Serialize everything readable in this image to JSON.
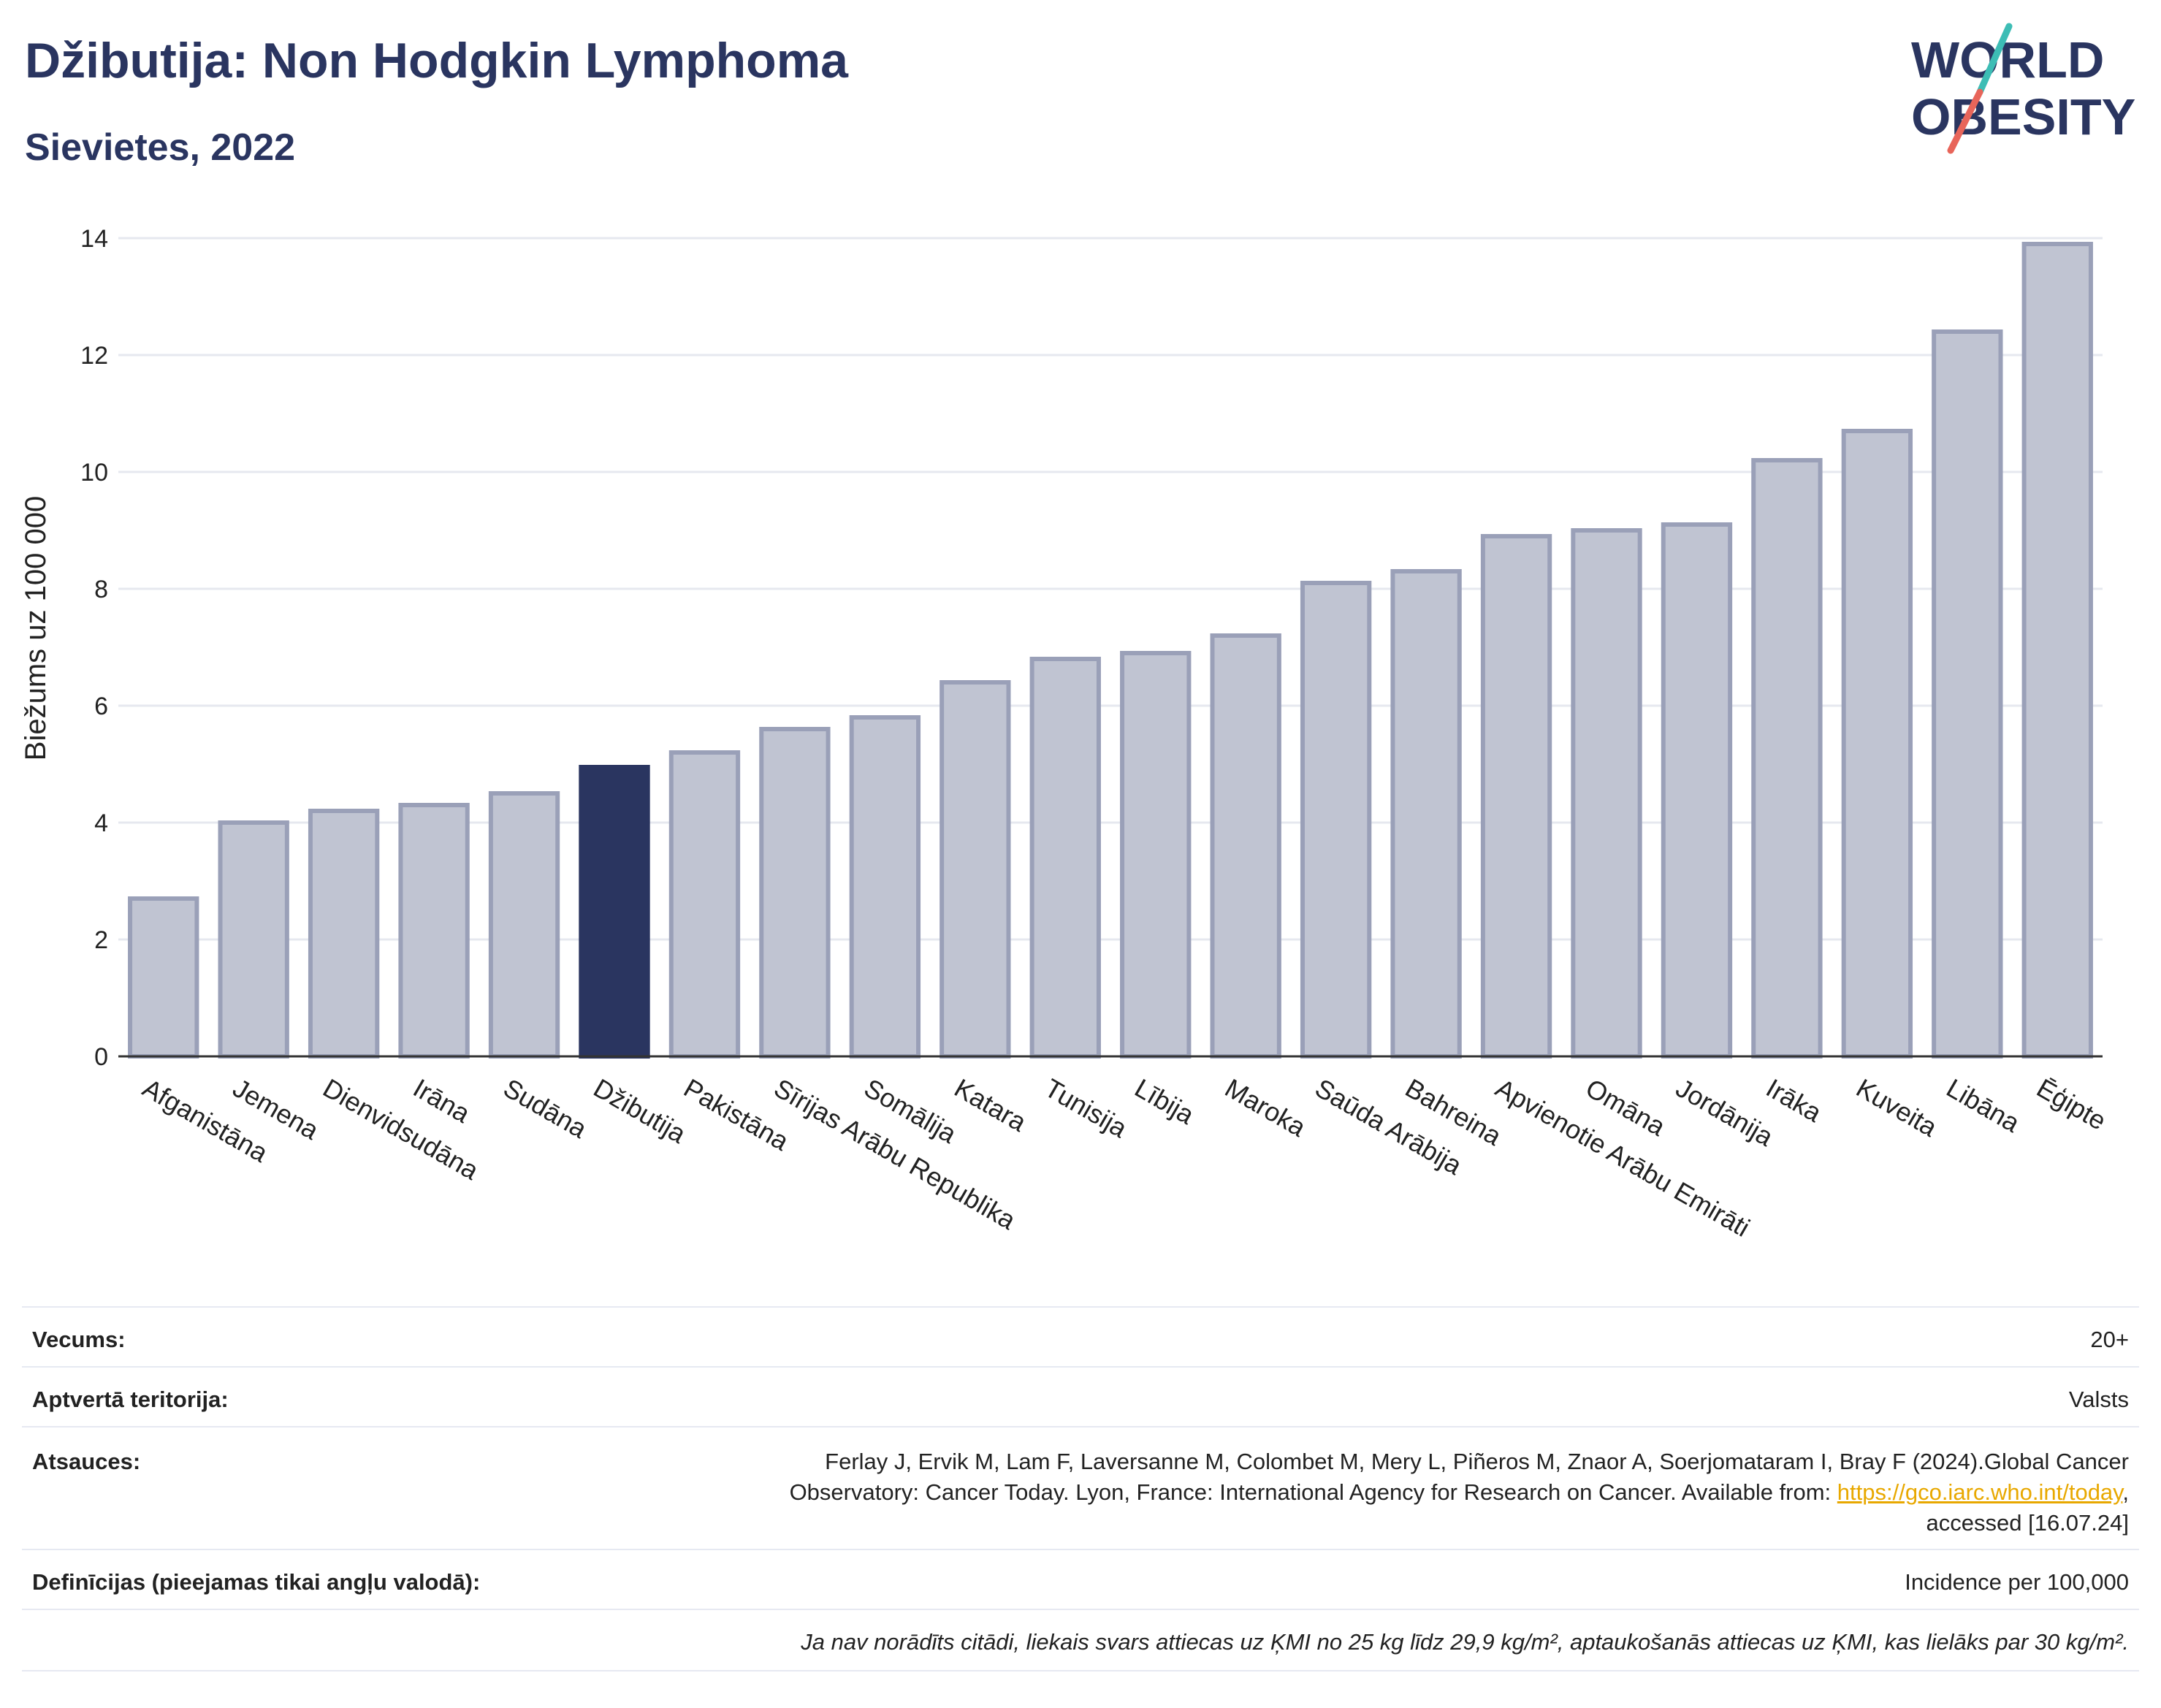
{
  "header": {
    "title": "Džibutija: Non Hodgkin Lymphoma",
    "subtitle": "Sievietes, 2022"
  },
  "logo": {
    "line1": "WORLD",
    "line2": "OBESITY",
    "accent_teal": "#3dbdb5",
    "accent_red": "#e8655a",
    "color": "#2a3560"
  },
  "chart_data": {
    "type": "bar",
    "ylabel": "Biežums uz 100 000",
    "ylim": [
      0,
      14
    ],
    "yticks": [
      0,
      2,
      4,
      6,
      8,
      10,
      12,
      14
    ],
    "grid": true,
    "highlight": "Džibutija",
    "bar_color": "#c0c4d2",
    "bar_edge_color": "#9aa0b8",
    "highlight_color": "#2a3560",
    "categories": [
      "Afganistāna",
      "Jemena",
      "Dienvidsudāna",
      "Irāna",
      "Sudāna",
      "Džibutija",
      "Pakistāna",
      "Sīrijas Arābu Republika",
      "Somālija",
      "Katara",
      "Tunisija",
      "Lībija",
      "Maroka",
      "Saūda Arābija",
      "Bahreina",
      "Apvienotie Arābu Emirāti",
      "Omāna",
      "Jordānija",
      "Irāka",
      "Kuveita",
      "Libāna",
      "Ēģipte"
    ],
    "values": [
      2.7,
      4.0,
      4.2,
      4.3,
      4.5,
      4.95,
      5.2,
      5.6,
      5.8,
      6.4,
      6.8,
      6.9,
      7.2,
      8.1,
      8.3,
      8.9,
      9.0,
      9.1,
      10.2,
      10.7,
      12.4,
      13.9
    ]
  },
  "info": {
    "age_label": "Vecums:",
    "age_value": "20+",
    "territory_label": "Aptvertā teritorija:",
    "territory_value": "Valsts",
    "refs_label": "Atsauces:",
    "refs_text_1": "Ferlay J, Ervik M, Lam F, Laversanne M, Colombet M, Mery L, Piñeros M, Znaor A, Soerjomataram I, Bray F (2024).Global Cancer",
    "refs_text_2": "Observatory: Cancer Today. Lyon, France: International Agency for Research on Cancer. Available from: ",
    "refs_link": "https://gco.iarc.who.int/today",
    "refs_text_3": ",",
    "refs_text_4": "accessed [16.07.24]",
    "defs_label": "Definīcijas (pieejamas tikai angļu valodā):",
    "defs_value": "Incidence per 100,000",
    "note": "Ja nav norādīts citādi, liekais svars attiecas uz ĶMI no 25 kg līdz 29,9 kg/m², aptaukošanās attiecas uz ĶMI, kas lielāks par 30 kg/m²."
  }
}
